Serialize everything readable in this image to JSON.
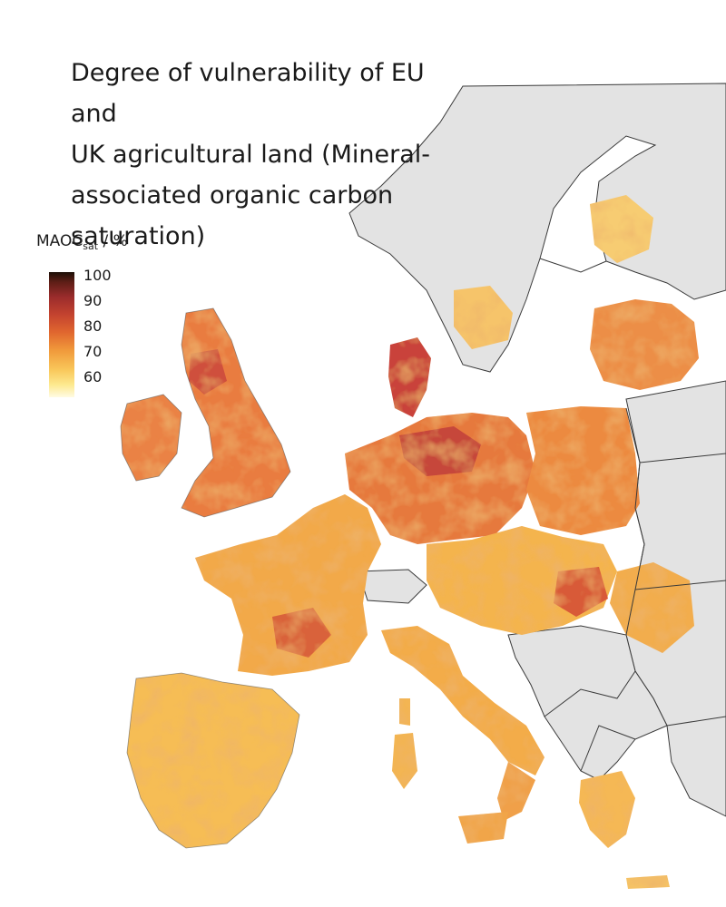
{
  "title": "Degree of vulnerability of EU and UK agricultural land (Mineral-associated organic carbon saturation)",
  "title_lines": [
    "Degree of vulnerability of EU and",
    "UK agricultural land (Mineral-",
    "associated organic carbon",
    "saturation)"
  ],
  "legend": {
    "var_main": "MAOC",
    "var_sub": "sat",
    "var_unit": " / %",
    "ticks": [
      "100",
      "90",
      "80",
      "70",
      "60"
    ],
    "colors": {
      "dark": "#1c0f07",
      "deep_red": "#9b2c2c",
      "red": "#c4432f",
      "orange": "#e0662f",
      "light_orange": "#f0983a",
      "yellow": "#f9c75a",
      "pale": "#fffbe3"
    }
  },
  "map": {
    "land_color": "#e3e3e3",
    "border_color": "#3a3a3a",
    "sea_color": "#ffffff"
  }
}
